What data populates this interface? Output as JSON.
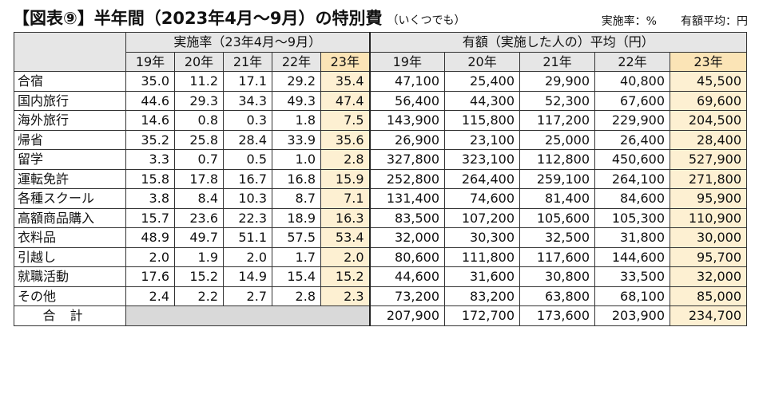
{
  "title": {
    "main": "【図表⑨】半年間（2023年4月～9月）の特別費",
    "sub": "（いくつでも）"
  },
  "units": {
    "rate": "実施率：%",
    "amount": "有額平均：円"
  },
  "table": {
    "group_rate": "実施率（23年4月～9月）",
    "group_amount": "有額（実施した人の）平均（円）",
    "years": [
      "19年",
      "20年",
      "21年",
      "22年",
      "23年"
    ],
    "rows": [
      {
        "label": "合宿",
        "rates": [
          "35.0",
          "11.2",
          "17.1",
          "29.2",
          "35.4"
        ],
        "amounts": [
          "47,100",
          "25,400",
          "29,900",
          "40,800",
          "45,500"
        ]
      },
      {
        "label": "国内旅行",
        "rates": [
          "44.6",
          "29.3",
          "34.3",
          "49.3",
          "47.4"
        ],
        "amounts": [
          "56,400",
          "44,300",
          "52,300",
          "67,600",
          "69,600"
        ]
      },
      {
        "label": "海外旅行",
        "rates": [
          "14.6",
          "0.8",
          "0.3",
          "1.8",
          "7.5"
        ],
        "amounts": [
          "143,900",
          "115,800",
          "117,200",
          "229,900",
          "204,500"
        ]
      },
      {
        "label": "帰省",
        "rates": [
          "35.2",
          "25.8",
          "28.4",
          "33.9",
          "35.6"
        ],
        "amounts": [
          "26,900",
          "23,100",
          "25,000",
          "26,400",
          "28,400"
        ]
      },
      {
        "label": "留学",
        "rates": [
          "3.3",
          "0.7",
          "0.5",
          "1.0",
          "2.8"
        ],
        "amounts": [
          "327,800",
          "323,100",
          "112,800",
          "450,600",
          "527,900"
        ]
      },
      {
        "label": "運転免許",
        "rates": [
          "15.8",
          "17.8",
          "16.7",
          "16.8",
          "15.9"
        ],
        "amounts": [
          "252,800",
          "264,400",
          "259,100",
          "264,100",
          "271,800"
        ]
      },
      {
        "label": "各種スクール",
        "rates": [
          "3.8",
          "8.4",
          "10.3",
          "8.7",
          "7.1"
        ],
        "amounts": [
          "131,400",
          "74,600",
          "81,400",
          "84,600",
          "95,900"
        ]
      },
      {
        "label": "高額商品購入",
        "rates": [
          "15.7",
          "23.6",
          "22.3",
          "18.9",
          "16.3"
        ],
        "amounts": [
          "83,500",
          "107,200",
          "105,600",
          "105,300",
          "110,900"
        ]
      },
      {
        "label": "衣料品",
        "rates": [
          "48.9",
          "49.7",
          "51.1",
          "57.5",
          "53.4"
        ],
        "amounts": [
          "32,000",
          "30,300",
          "32,500",
          "31,800",
          "30,000"
        ]
      },
      {
        "label": "引越し",
        "rates": [
          "2.0",
          "1.9",
          "2.0",
          "1.7",
          "2.0"
        ],
        "amounts": [
          "80,600",
          "111,800",
          "117,600",
          "144,600",
          "95,700"
        ]
      },
      {
        "label": "就職活動",
        "rates": [
          "17.6",
          "15.2",
          "14.9",
          "15.4",
          "15.2"
        ],
        "amounts": [
          "44,600",
          "31,600",
          "30,800",
          "33,500",
          "32,000"
        ]
      },
      {
        "label": "その他",
        "rates": [
          "2.4",
          "2.2",
          "2.7",
          "2.8",
          "2.3"
        ],
        "amounts": [
          "73,200",
          "83,200",
          "63,800",
          "68,100",
          "85,000"
        ]
      }
    ],
    "total": {
      "label": "合計",
      "amounts": [
        "207,900",
        "172,700",
        "173,600",
        "203,900",
        "234,700"
      ]
    }
  }
}
